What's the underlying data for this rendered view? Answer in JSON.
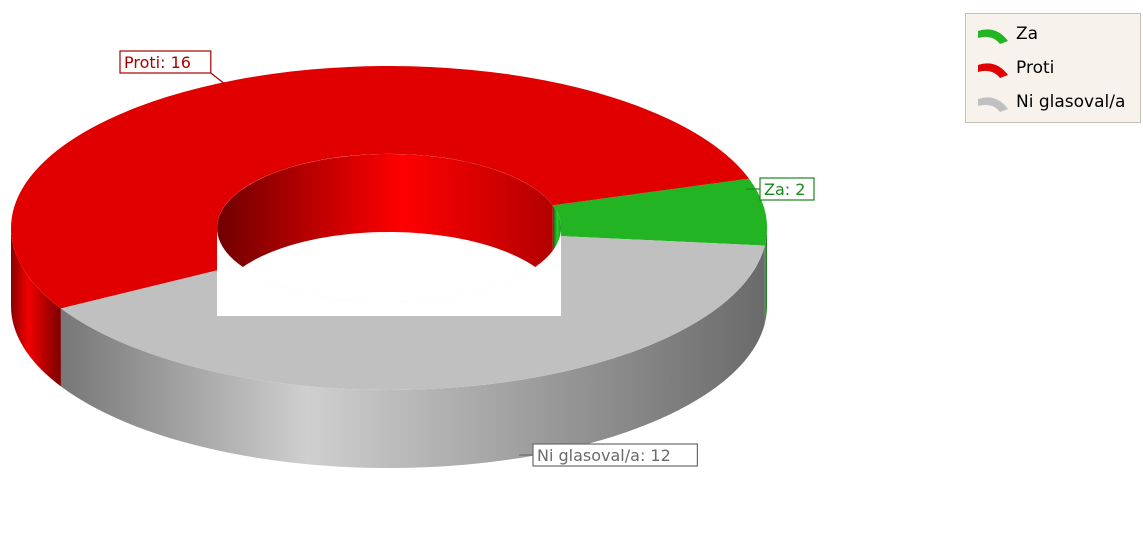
{
  "chart_data": {
    "type": "pie",
    "variant": "3d-donut",
    "categories": [
      "Za",
      "Proti",
      "Ni glasoval/a"
    ],
    "values": [
      2,
      16,
      12
    ],
    "colors": [
      "#22b422",
      "#e00000",
      "#c0c0c0"
    ],
    "data_labels": [
      "Za: 2",
      "Proti: 16",
      "Ni glasoval/a: 12"
    ],
    "legend": {
      "position": "top-right",
      "items": [
        {
          "label": "Za",
          "color": "#22b422"
        },
        {
          "label": "Proti",
          "color": "#e00000"
        },
        {
          "label": "Ni glasoval/a",
          "color": "#c0c0c0"
        }
      ]
    }
  }
}
